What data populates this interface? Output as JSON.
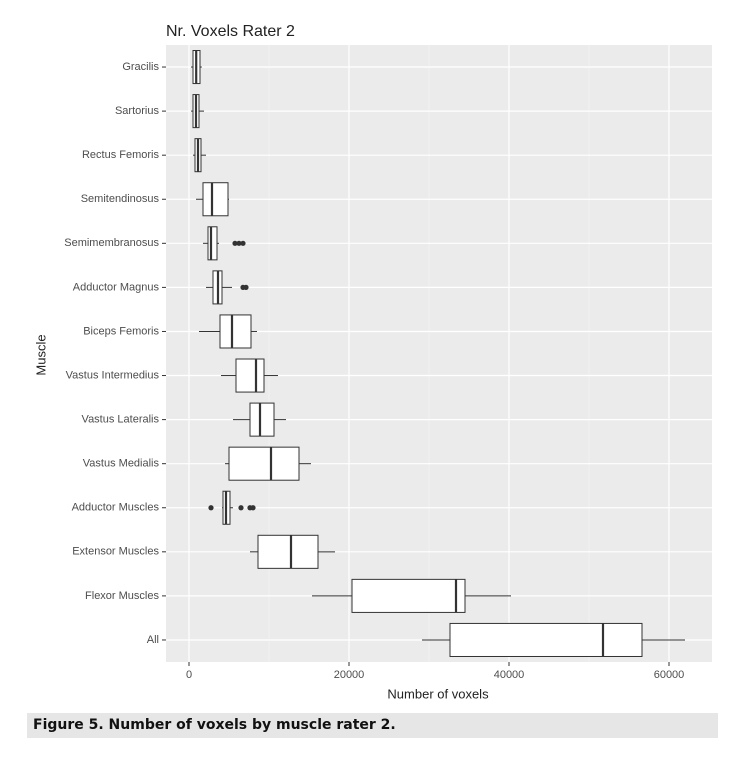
{
  "chart_data": {
    "type": "boxplot",
    "title": "Nr. Voxels Rater 2",
    "x_label": "Number of voxels",
    "y_label": "Muscle",
    "categories": [
      "Gracilis",
      "Sartorius",
      "Rectus Femoris",
      "Semitendinosus",
      "Semimembranosus",
      "Adductor Magnus",
      "Biceps Femoris",
      "Vastus Intermedius",
      "Vastus Lateralis",
      "Vastus Medialis",
      "Adductor Muscles",
      "Extensor Muscles",
      "Flexor Muscles",
      "All"
    ],
    "stats": [
      [
        250,
        500,
        900,
        1375,
        1600
      ],
      [
        250,
        500,
        875,
        1250,
        1875
      ],
      [
        500,
        750,
        1125,
        1500,
        2125
      ],
      [
        875,
        1750,
        2875,
        4875,
        5000
      ],
      [
        1750,
        2375,
        2750,
        3500,
        3750
      ],
      [
        2125,
        3000,
        3625,
        4125,
        5375
      ],
      [
        1250,
        3875,
        5375,
        7750,
        8500
      ],
      [
        4000,
        5875,
        8375,
        9375,
        11125
      ],
      [
        5500,
        7625,
        8875,
        10625,
        12125
      ],
      [
        4500,
        5000,
        10250,
        13750,
        15250
      ],
      [
        4125,
        4250,
        4625,
        5125,
        5500
      ],
      [
        7625,
        8625,
        12750,
        16125,
        18250
      ],
      [
        15375,
        20375,
        33375,
        34500,
        40250
      ],
      [
        29125,
        32625,
        51750,
        56625,
        62000
      ]
    ],
    "outliers": [
      [],
      [],
      [],
      [],
      [
        5750,
        6250,
        6750
      ],
      [
        6750,
        7125
      ],
      [],
      [],
      [],
      [],
      [
        2750,
        6500,
        7625,
        8000
      ],
      [],
      [],
      []
    ],
    "xlim": [
      -2875,
      65375
    ],
    "xticks": [
      0,
      20000,
      40000,
      60000
    ],
    "grid": true,
    "color": "#ffffff"
  },
  "caption": "Figure 5. Number of voxels by muscle rater 2."
}
